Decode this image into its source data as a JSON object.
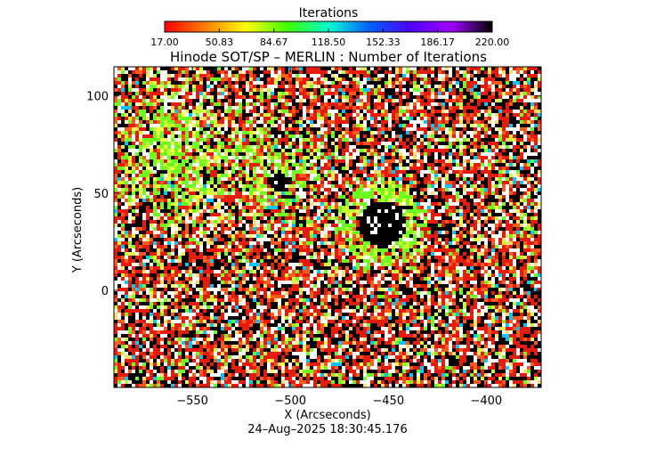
{
  "colorbar": {
    "title": "Iterations",
    "min": 17.0,
    "max": 220.0,
    "tick_labels": [
      "17.00",
      "50.83",
      "84.67",
      "118.50",
      "152.33",
      "186.17",
      "220.00"
    ],
    "colors": [
      "#ff0000",
      "#ff8000",
      "#ffff00",
      "#40ff00",
      "#00ffd0",
      "#0060ff",
      "#5000ff",
      "#a000ff",
      "#000000"
    ]
  },
  "chart_data": {
    "type": "heatmap",
    "title": "Hinode SOT/SP – MERLIN : Number of Iterations",
    "xlabel": "X (Arcseconds)",
    "ylabel": "Y (Arcseconds)",
    "xlim": [
      -590,
      -372
    ],
    "ylim": [
      -50,
      115
    ],
    "xticks": [
      -550,
      -500,
      -450,
      -400
    ],
    "xtick_labels": [
      "−550",
      "−500",
      "−450",
      "−400"
    ],
    "yticks": [
      0,
      50,
      100
    ],
    "ytick_labels": [
      "0",
      "50",
      "100"
    ],
    "features": [
      {
        "name": "sunspot umbra",
        "x": -453,
        "y": 34,
        "radius": 12
      },
      {
        "name": "pore",
        "x": -505,
        "y": 55,
        "radius": 5
      },
      {
        "name": "pore",
        "x": -568,
        "y": 60,
        "radius": 2
      },
      {
        "name": "pore",
        "x": -575,
        "y": 42,
        "radius": 2
      }
    ]
  },
  "footer": {
    "timestamp": "24–Aug–2025 18:30:45.176"
  }
}
